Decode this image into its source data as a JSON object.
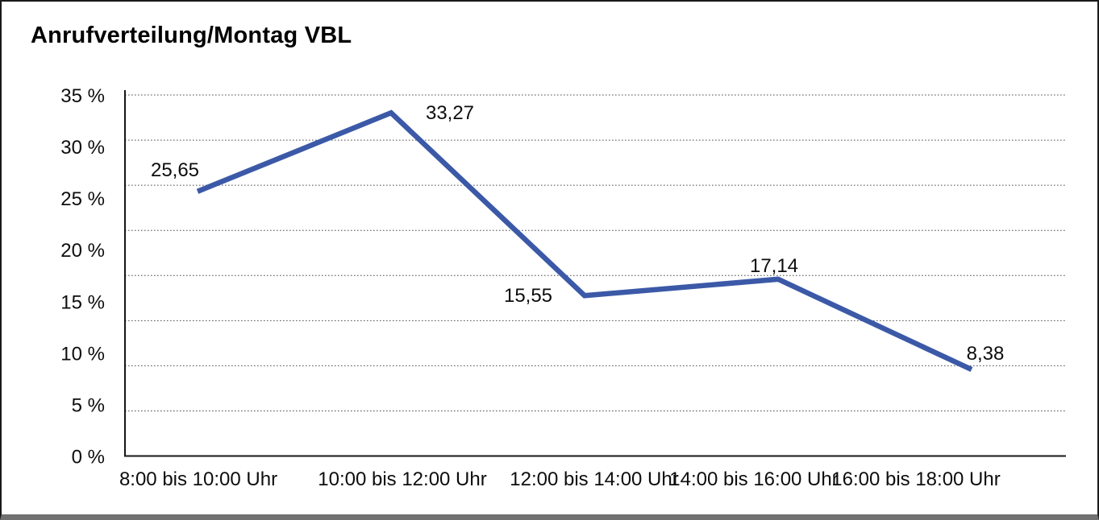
{
  "title": "Anrufverteilung/Montag VBL",
  "chart_data": {
    "type": "line",
    "title": "Anrufverteilung/Montag VBL",
    "categories": [
      "8:00 bis 10:00 Uhr",
      "10:00 bis 12:00 Uhr",
      "12:00 bis 14:00 Uhr",
      "14:00 bis 16:00 Uhr",
      "16:00 bis 18:00 Uhr"
    ],
    "values": [
      25.65,
      33.27,
      15.55,
      17.14,
      8.38
    ],
    "value_labels": [
      "25,65",
      "33,27",
      "15,55",
      "17,14",
      "8,38"
    ],
    "y_tick_labels": [
      "0 %",
      "5 %",
      "10 %",
      "15 %",
      "20 %",
      "25 %",
      "30 %",
      "35 %"
    ],
    "y_tick_step": 5,
    "ylim": [
      0,
      35
    ],
    "xlabel": "",
    "ylabel": "",
    "legend_position": "none",
    "grid": "horizontal-dotted",
    "grid_intervals": 8,
    "line_color": "#3B59A7",
    "axis_color": "#161616",
    "gridline_color": "#4d4d4d",
    "text_color": "#0d0d0d"
  }
}
